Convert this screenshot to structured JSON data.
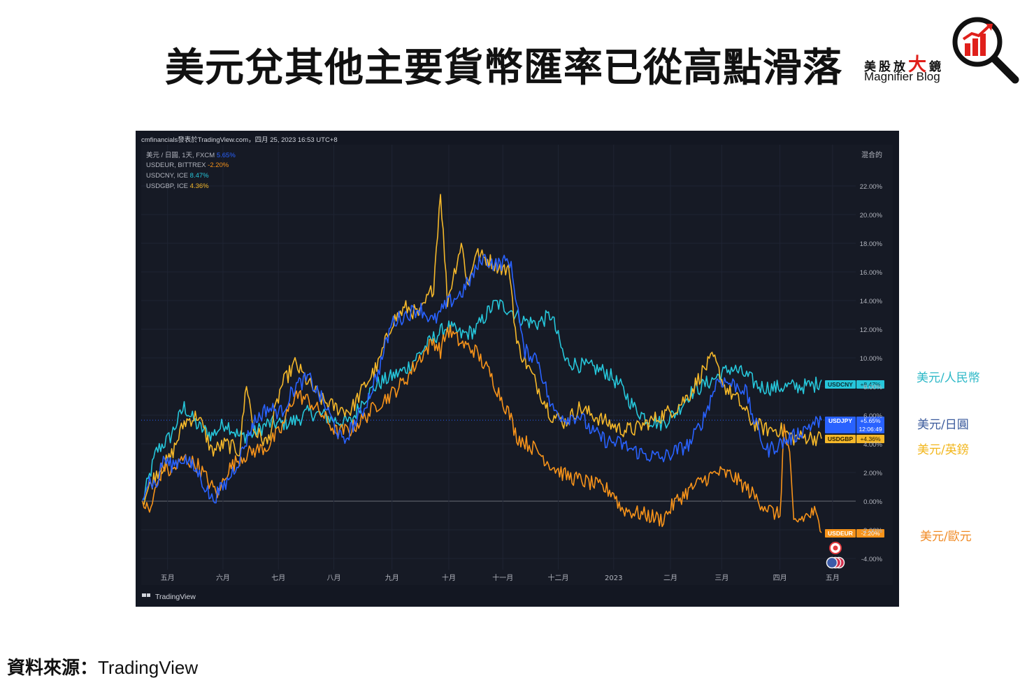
{
  "page": {
    "title": "美元兌其他主要貨幣匯率已從高點滑落",
    "brand_cn_a": "美股放",
    "brand_cn_big": "大",
    "brand_cn_b": "鏡",
    "brand_en": "Magnifier Blog",
    "source_label": "資料來源：",
    "source_name": "TradingView"
  },
  "side_labels": [
    {
      "text": "美元/人民幣",
      "color": "#2cb8c7"
    },
    {
      "text": "美元/日圓",
      "color": "#3a5a9c"
    },
    {
      "text": "美元/英鎊",
      "color": "#f2b61b"
    },
    {
      "text": "美元/歐元",
      "color": "#f08a24"
    }
  ],
  "tv": {
    "header": "cmfinancials發表於TradingView.com，四月 25, 2023 16:53 UTC+8",
    "scale_label": "混合的",
    "watermark": "TradingView",
    "clock": "12:06:49"
  },
  "chart_data": {
    "type": "line",
    "ylim": [
      -5,
      23
    ],
    "y_ticks": [
      -4,
      -2,
      0,
      2,
      4,
      6,
      8,
      10,
      12,
      14,
      16,
      18,
      20,
      22
    ],
    "y_tick_labels": [
      "-4.00%",
      "-2.00%",
      "0.00%",
      "2.00%",
      "4.00%",
      "6.00%",
      "8.00%",
      "10.00%",
      "12.00%",
      "14.00%",
      "16.00%",
      "18.00%",
      "20.00%",
      "22.00%"
    ],
    "x_ticks": [
      {
        "label": "五月",
        "i": 18
      },
      {
        "label": "六月",
        "i": 58
      },
      {
        "label": "七月",
        "i": 98
      },
      {
        "label": "八月",
        "i": 138
      },
      {
        "label": "九月",
        "i": 180
      },
      {
        "label": "十月",
        "i": 221
      },
      {
        "label": "十一月",
        "i": 260
      },
      {
        "label": "十二月",
        "i": 300
      },
      {
        "label": "2023",
        "i": 340
      },
      {
        "label": "二月",
        "i": 381
      },
      {
        "label": "三月",
        "i": 418
      },
      {
        "label": "四月",
        "i": 460
      },
      {
        "label": "五月",
        "i": 498
      }
    ],
    "series": [
      {
        "name": "USDCNY",
        "legend": "USDCNY, ICE",
        "last_label": "8.47%",
        "tag_value": "+8.47%",
        "color": "#26c6da",
        "anchors": [
          [
            0,
            0
          ],
          [
            10,
            3.5
          ],
          [
            20,
            4.5
          ],
          [
            30,
            6.6
          ],
          [
            40,
            5.2
          ],
          [
            50,
            4.6
          ],
          [
            60,
            5.5
          ],
          [
            70,
            4.5
          ],
          [
            80,
            4.7
          ],
          [
            90,
            5.4
          ],
          [
            100,
            5.4
          ],
          [
            110,
            5.6
          ],
          [
            120,
            6.2
          ],
          [
            130,
            6.0
          ],
          [
            140,
            5.6
          ],
          [
            150,
            5.5
          ],
          [
            160,
            7.2
          ],
          [
            170,
            8.2
          ],
          [
            180,
            8.7
          ],
          [
            190,
            9.2
          ],
          [
            200,
            10.3
          ],
          [
            210,
            11.4
          ],
          [
            220,
            12.2
          ],
          [
            230,
            11.6
          ],
          [
            240,
            11.9
          ],
          [
            250,
            13.3
          ],
          [
            255,
            13.8
          ],
          [
            265,
            13.4
          ],
          [
            275,
            12.6
          ],
          [
            285,
            12.4
          ],
          [
            295,
            13.0
          ],
          [
            305,
            9.8
          ],
          [
            315,
            9.5
          ],
          [
            325,
            9.3
          ],
          [
            335,
            9.0
          ],
          [
            345,
            8.0
          ],
          [
            355,
            6.5
          ],
          [
            365,
            5.7
          ],
          [
            375,
            5.4
          ],
          [
            385,
            6.2
          ],
          [
            395,
            7.5
          ],
          [
            405,
            8.1
          ],
          [
            415,
            8.7
          ],
          [
            425,
            9.3
          ],
          [
            435,
            8.8
          ],
          [
            445,
            8.0
          ],
          [
            455,
            7.9
          ],
          [
            465,
            8.0
          ],
          [
            475,
            8.0
          ],
          [
            485,
            8.1
          ],
          [
            490,
            8.47
          ]
        ]
      },
      {
        "name": "USDJPY",
        "legend": "美元 / 日圓, 1天, FXCM",
        "last_label": "5.65%",
        "tag_value": "+5.65%",
        "color": "#2962ff",
        "anchors": [
          [
            0,
            0.6
          ],
          [
            5,
            1.5
          ],
          [
            10,
            1.0
          ],
          [
            15,
            3.0
          ],
          [
            20,
            2.5
          ],
          [
            30,
            3.0
          ],
          [
            40,
            2.0
          ],
          [
            50,
            0.1
          ],
          [
            60,
            1.2
          ],
          [
            70,
            3.0
          ],
          [
            80,
            5.5
          ],
          [
            90,
            6.5
          ],
          [
            100,
            6.2
          ],
          [
            110,
            8.0
          ],
          [
            120,
            8.6
          ],
          [
            130,
            7.0
          ],
          [
            140,
            5.0
          ],
          [
            145,
            4.0
          ],
          [
            150,
            5.0
          ],
          [
            160,
            6.5
          ],
          [
            170,
            9.0
          ],
          [
            180,
            12.5
          ],
          [
            190,
            13.0
          ],
          [
            200,
            13.5
          ],
          [
            210,
            12.5
          ],
          [
            220,
            13.8
          ],
          [
            230,
            14.5
          ],
          [
            240,
            16.0
          ],
          [
            245,
            17.0
          ],
          [
            255,
            16.5
          ],
          [
            265,
            16.8
          ],
          [
            270,
            14.0
          ],
          [
            275,
            10.5
          ],
          [
            285,
            10.0
          ],
          [
            295,
            6.5
          ],
          [
            305,
            5.8
          ],
          [
            315,
            6.0
          ],
          [
            325,
            4.8
          ],
          [
            335,
            4.2
          ],
          [
            345,
            4.0
          ],
          [
            355,
            3.5
          ],
          [
            365,
            3.2
          ],
          [
            375,
            3.0
          ],
          [
            385,
            3.5
          ],
          [
            395,
            4.0
          ],
          [
            405,
            5.8
          ],
          [
            415,
            8.5
          ],
          [
            425,
            8.2
          ],
          [
            435,
            7.8
          ],
          [
            440,
            6.0
          ],
          [
            450,
            3.5
          ],
          [
            460,
            4.0
          ],
          [
            470,
            4.5
          ],
          [
            480,
            5.2
          ],
          [
            490,
            5.65
          ]
        ]
      },
      {
        "name": "USDGBP",
        "legend": "USDGBP, ICE",
        "last_label": "4.36%",
        "tag_value": "+4.36%",
        "color": "#f5b82a",
        "anchors": [
          [
            0,
            0
          ],
          [
            10,
            2.0
          ],
          [
            20,
            3.0
          ],
          [
            30,
            5.5
          ],
          [
            40,
            6.0
          ],
          [
            50,
            3.5
          ],
          [
            60,
            4.0
          ],
          [
            70,
            3.5
          ],
          [
            75,
            8.3
          ],
          [
            80,
            5.0
          ],
          [
            90,
            4.0
          ],
          [
            100,
            8.0
          ],
          [
            110,
            9.6
          ],
          [
            120,
            8.2
          ],
          [
            130,
            7.0
          ],
          [
            140,
            6.5
          ],
          [
            150,
            6.3
          ],
          [
            160,
            8.0
          ],
          [
            170,
            9.5
          ],
          [
            180,
            12.5
          ],
          [
            190,
            13.5
          ],
          [
            200,
            13.0
          ],
          [
            210,
            15.0
          ],
          [
            215,
            21.7
          ],
          [
            220,
            14.0
          ],
          [
            230,
            18.0
          ],
          [
            235,
            15.0
          ],
          [
            240,
            17.3
          ],
          [
            250,
            16.8
          ],
          [
            255,
            16.5
          ],
          [
            265,
            16.0
          ],
          [
            270,
            11.0
          ],
          [
            275,
            10.0
          ],
          [
            285,
            8.0
          ],
          [
            295,
            6.0
          ],
          [
            305,
            5.5
          ],
          [
            315,
            6.5
          ],
          [
            325,
            6.0
          ],
          [
            335,
            5.5
          ],
          [
            345,
            5.0
          ],
          [
            355,
            5.0
          ],
          [
            365,
            5.5
          ],
          [
            375,
            6.0
          ],
          [
            385,
            6.5
          ],
          [
            395,
            7.5
          ],
          [
            405,
            9.2
          ],
          [
            412,
            10.0
          ],
          [
            420,
            8.0
          ],
          [
            430,
            7.0
          ],
          [
            440,
            5.5
          ],
          [
            450,
            5.0
          ],
          [
            460,
            5.0
          ],
          [
            470,
            4.4
          ],
          [
            480,
            4.5
          ],
          [
            490,
            4.36
          ]
        ]
      },
      {
        "name": "USDEUR",
        "legend": "USDEUR, BITTREX",
        "last_label": "-2.20%",
        "tag_value": "-2.20%",
        "color": "#f7931a",
        "anchors": [
          [
            0,
            0
          ],
          [
            5,
            -0.8
          ],
          [
            10,
            1.0
          ],
          [
            15,
            2.5
          ],
          [
            20,
            2.0
          ],
          [
            30,
            3.0
          ],
          [
            40,
            2.5
          ],
          [
            50,
            1.0
          ],
          [
            55,
            0.5
          ],
          [
            60,
            2.0
          ],
          [
            70,
            3.0
          ],
          [
            80,
            3.5
          ],
          [
            90,
            3.8
          ],
          [
            100,
            5.0
          ],
          [
            110,
            7.5
          ],
          [
            120,
            7.0
          ],
          [
            130,
            6.0
          ],
          [
            140,
            4.8
          ],
          [
            150,
            5.0
          ],
          [
            160,
            5.8
          ],
          [
            170,
            6.8
          ],
          [
            180,
            7.5
          ],
          [
            190,
            8.5
          ],
          [
            200,
            10.0
          ],
          [
            210,
            11.2
          ],
          [
            215,
            10.5
          ],
          [
            220,
            12.0
          ],
          [
            230,
            11.0
          ],
          [
            240,
            10.5
          ],
          [
            250,
            9.0
          ],
          [
            255,
            8.0
          ],
          [
            265,
            6.0
          ],
          [
            270,
            4.5
          ],
          [
            275,
            4.2
          ],
          [
            285,
            3.5
          ],
          [
            295,
            2.5
          ],
          [
            305,
            1.8
          ],
          [
            315,
            1.5
          ],
          [
            325,
            1.2
          ],
          [
            335,
            0.8
          ],
          [
            340,
            0.6
          ],
          [
            345,
            -0.5
          ],
          [
            355,
            -0.8
          ],
          [
            365,
            -1.0
          ],
          [
            375,
            -1.3
          ],
          [
            385,
            0.0
          ],
          [
            395,
            0.8
          ],
          [
            405,
            1.5
          ],
          [
            415,
            2.0
          ],
          [
            425,
            1.8
          ],
          [
            435,
            1.0
          ],
          [
            445,
            0.0
          ],
          [
            455,
            -0.8
          ],
          [
            460,
            -1.0
          ],
          [
            463,
            5.2
          ],
          [
            467,
            3.0
          ],
          [
            470,
            -1.5
          ],
          [
            480,
            -1.0
          ],
          [
            485,
            -0.8
          ],
          [
            490,
            -2.2
          ]
        ]
      }
    ]
  }
}
